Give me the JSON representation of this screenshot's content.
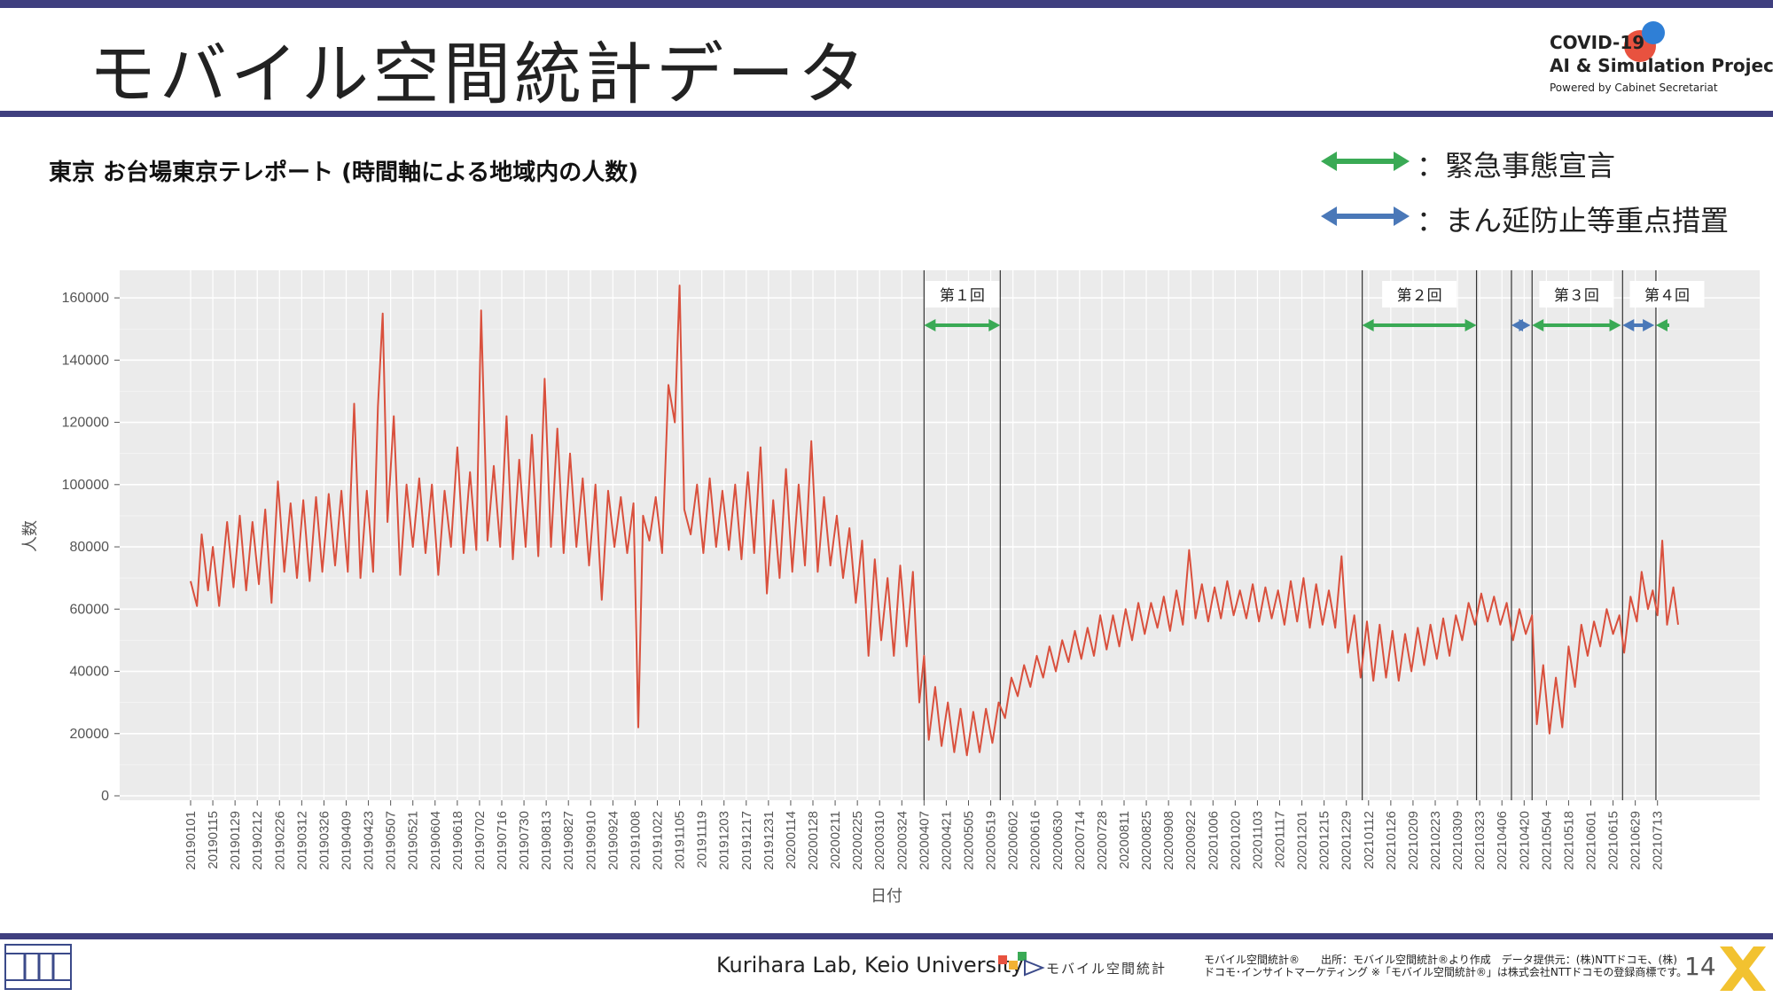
{
  "header": {
    "title": "モバイル空間統計データ",
    "brand_line1": "COVID-19",
    "brand_line2": "AI & Simulation Project",
    "brand_line3": "Powered by Cabinet Secretariat"
  },
  "subtitle": "東京 お台場東京テレポート (時間軸による地域内の人数)",
  "legend": [
    {
      "label": "：緊急事態宣言",
      "color": "#3aaa55"
    },
    {
      "label": "：まん延防止等重点措置",
      "color": "#4a78b8"
    }
  ],
  "footer": {
    "lab": "Kurihara Lab, Keio University",
    "logo_text": "モバイル空間統計",
    "source_line1": "モバイル空間統計®　　出所：モバイル空間統計®より作成　データ提供元：(株)NTTドコモ、(株)",
    "source_line2": "ドコモ･インサイトマーケティング ※「モバイル空間統計®」は株式会社NTTドコモの登録商標です。",
    "page_number": "14"
  },
  "colors": {
    "accent_bar": "#3f3f7f",
    "series_line": "#d9503d",
    "plot_bg": "#ebebeb"
  },
  "chart_data": {
    "type": "line",
    "title": "",
    "xlabel": "日付",
    "ylabel": "人数",
    "ylim": [
      0,
      170000
    ],
    "yticks": [
      0,
      20000,
      40000,
      60000,
      80000,
      100000,
      120000,
      140000,
      160000
    ],
    "grid": true,
    "x_start": "2019-01-01",
    "x_end": "2021-07-26",
    "x_ticks": [
      "20190101",
      "20190115",
      "20190129",
      "20190212",
      "20190226",
      "20190312",
      "20190326",
      "20190409",
      "20190423",
      "20190507",
      "20190521",
      "20190604",
      "20190618",
      "20190702",
      "20190716",
      "20190730",
      "20190813",
      "20190827",
      "20190910",
      "20190924",
      "20191008",
      "20191022",
      "20191105",
      "20191119",
      "20191203",
      "20191217",
      "20191231",
      "20200114",
      "20200128",
      "20200211",
      "20200225",
      "20200310",
      "20200324",
      "20200407",
      "20200421",
      "20200505",
      "20200519",
      "20200602",
      "20200616",
      "20200630",
      "20200714",
      "20200728",
      "20200811",
      "20200825",
      "20200908",
      "20200922",
      "20201006",
      "20201020",
      "20201103",
      "20201117",
      "20201201",
      "20201215",
      "20201229",
      "20210112",
      "20210126",
      "20210209",
      "20210223",
      "20210309",
      "20210323",
      "20210406",
      "20210420",
      "20210504",
      "20210518",
      "20210601",
      "20210615",
      "20210629",
      "20210713"
    ],
    "period_markers": [
      {
        "label": "第１回",
        "start": "2020-04-07",
        "end": "2020-05-25",
        "kind": "emergency"
      },
      {
        "label": "第２回",
        "start": "2021-01-08",
        "end": "2021-03-21",
        "kind": "emergency"
      },
      {
        "label": "",
        "start": "2021-04-12",
        "end": "2021-04-24",
        "kind": "priority"
      },
      {
        "label": "第３回",
        "start": "2021-04-25",
        "end": "2021-06-20",
        "kind": "emergency"
      },
      {
        "label": "",
        "start": "2021-06-21",
        "end": "2021-07-11",
        "kind": "priority"
      },
      {
        "label": "第４回",
        "start": "2021-07-12",
        "end": "2021-07-26",
        "kind": "emergency"
      }
    ],
    "series": [
      {
        "values_note": "",
        "points": [
          [
            "2019-01-01",
            69000
          ],
          [
            "2019-01-05",
            61000
          ],
          [
            "2019-01-08",
            84000
          ],
          [
            "2019-01-12",
            66000
          ],
          [
            "2019-01-15",
            80000
          ],
          [
            "2019-01-19",
            61000
          ],
          [
            "2019-01-24",
            88000
          ],
          [
            "2019-01-28",
            67000
          ],
          [
            "2019-02-01",
            90000
          ],
          [
            "2019-02-05",
            66000
          ],
          [
            "2019-02-09",
            88000
          ],
          [
            "2019-02-13",
            68000
          ],
          [
            "2019-02-17",
            92000
          ],
          [
            "2019-02-21",
            62000
          ],
          [
            "2019-02-25",
            101000
          ],
          [
            "2019-03-01",
            72000
          ],
          [
            "2019-03-05",
            94000
          ],
          [
            "2019-03-09",
            70000
          ],
          [
            "2019-03-13",
            95000
          ],
          [
            "2019-03-17",
            69000
          ],
          [
            "2019-03-21",
            96000
          ],
          [
            "2019-03-25",
            72000
          ],
          [
            "2019-03-29",
            97000
          ],
          [
            "2019-04-02",
            74000
          ],
          [
            "2019-04-06",
            98000
          ],
          [
            "2019-04-10",
            72000
          ],
          [
            "2019-04-14",
            126000
          ],
          [
            "2019-04-18",
            70000
          ],
          [
            "2019-04-22",
            98000
          ],
          [
            "2019-04-26",
            72000
          ],
          [
            "2019-04-29",
            125000
          ],
          [
            "2019-05-02",
            155000
          ],
          [
            "2019-05-05",
            88000
          ],
          [
            "2019-05-09",
            122000
          ],
          [
            "2019-05-13",
            71000
          ],
          [
            "2019-05-17",
            100000
          ],
          [
            "2019-05-21",
            80000
          ],
          [
            "2019-05-25",
            102000
          ],
          [
            "2019-05-29",
            78000
          ],
          [
            "2019-06-02",
            100000
          ],
          [
            "2019-06-06",
            71000
          ],
          [
            "2019-06-10",
            98000
          ],
          [
            "2019-06-14",
            80000
          ],
          [
            "2019-06-18",
            112000
          ],
          [
            "2019-06-22",
            78000
          ],
          [
            "2019-06-26",
            104000
          ],
          [
            "2019-06-30",
            79000
          ],
          [
            "2019-07-03",
            156000
          ],
          [
            "2019-07-07",
            82000
          ],
          [
            "2019-07-11",
            106000
          ],
          [
            "2019-07-15",
            80000
          ],
          [
            "2019-07-19",
            122000
          ],
          [
            "2019-07-23",
            76000
          ],
          [
            "2019-07-27",
            108000
          ],
          [
            "2019-07-31",
            80000
          ],
          [
            "2019-08-04",
            116000
          ],
          [
            "2019-08-08",
            77000
          ],
          [
            "2019-08-12",
            134000
          ],
          [
            "2019-08-16",
            80000
          ],
          [
            "2019-08-20",
            118000
          ],
          [
            "2019-08-24",
            78000
          ],
          [
            "2019-08-28",
            110000
          ],
          [
            "2019-09-01",
            80000
          ],
          [
            "2019-09-05",
            102000
          ],
          [
            "2019-09-09",
            74000
          ],
          [
            "2019-09-13",
            100000
          ],
          [
            "2019-09-17",
            63000
          ],
          [
            "2019-09-21",
            98000
          ],
          [
            "2019-09-25",
            80000
          ],
          [
            "2019-09-29",
            96000
          ],
          [
            "2019-10-03",
            78000
          ],
          [
            "2019-10-07",
            94000
          ],
          [
            "2019-10-10",
            22000
          ],
          [
            "2019-10-13",
            90000
          ],
          [
            "2019-10-17",
            82000
          ],
          [
            "2019-10-21",
            96000
          ],
          [
            "2019-10-25",
            78000
          ],
          [
            "2019-10-29",
            132000
          ],
          [
            "2019-11-02",
            120000
          ],
          [
            "2019-11-05",
            164000
          ],
          [
            "2019-11-08",
            92000
          ],
          [
            "2019-11-12",
            84000
          ],
          [
            "2019-11-16",
            100000
          ],
          [
            "2019-11-20",
            78000
          ],
          [
            "2019-11-24",
            102000
          ],
          [
            "2019-11-28",
            80000
          ],
          [
            "2019-12-02",
            98000
          ],
          [
            "2019-12-06",
            79000
          ],
          [
            "2019-12-10",
            100000
          ],
          [
            "2019-12-14",
            76000
          ],
          [
            "2019-12-18",
            104000
          ],
          [
            "2019-12-22",
            78000
          ],
          [
            "2019-12-26",
            112000
          ],
          [
            "2019-12-30",
            65000
          ],
          [
            "2020-01-03",
            95000
          ],
          [
            "2020-01-07",
            70000
          ],
          [
            "2020-01-11",
            105000
          ],
          [
            "2020-01-15",
            72000
          ],
          [
            "2020-01-19",
            100000
          ],
          [
            "2020-01-23",
            74000
          ],
          [
            "2020-01-27",
            114000
          ],
          [
            "2020-01-31",
            72000
          ],
          [
            "2020-02-04",
            96000
          ],
          [
            "2020-02-08",
            74000
          ],
          [
            "2020-02-12",
            90000
          ],
          [
            "2020-02-16",
            70000
          ],
          [
            "2020-02-20",
            86000
          ],
          [
            "2020-02-24",
            62000
          ],
          [
            "2020-02-28",
            82000
          ],
          [
            "2020-03-03",
            45000
          ],
          [
            "2020-03-07",
            76000
          ],
          [
            "2020-03-11",
            50000
          ],
          [
            "2020-03-15",
            70000
          ],
          [
            "2020-03-19",
            45000
          ],
          [
            "2020-03-23",
            74000
          ],
          [
            "2020-03-27",
            48000
          ],
          [
            "2020-03-31",
            72000
          ],
          [
            "2020-04-04",
            30000
          ],
          [
            "2020-04-07",
            45000
          ],
          [
            "2020-04-10",
            18000
          ],
          [
            "2020-04-14",
            35000
          ],
          [
            "2020-04-18",
            16000
          ],
          [
            "2020-04-22",
            30000
          ],
          [
            "2020-04-26",
            14000
          ],
          [
            "2020-04-30",
            28000
          ],
          [
            "2020-05-04",
            13000
          ],
          [
            "2020-05-08",
            27000
          ],
          [
            "2020-05-12",
            14000
          ],
          [
            "2020-05-16",
            28000
          ],
          [
            "2020-05-20",
            17000
          ],
          [
            "2020-05-24",
            30000
          ],
          [
            "2020-05-28",
            25000
          ],
          [
            "2020-06-01",
            38000
          ],
          [
            "2020-06-05",
            32000
          ],
          [
            "2020-06-09",
            42000
          ],
          [
            "2020-06-13",
            35000
          ],
          [
            "2020-06-17",
            45000
          ],
          [
            "2020-06-21",
            38000
          ],
          [
            "2020-06-25",
            48000
          ],
          [
            "2020-06-29",
            40000
          ],
          [
            "2020-07-03",
            50000
          ],
          [
            "2020-07-07",
            43000
          ],
          [
            "2020-07-11",
            53000
          ],
          [
            "2020-07-15",
            44000
          ],
          [
            "2020-07-19",
            54000
          ],
          [
            "2020-07-23",
            45000
          ],
          [
            "2020-07-27",
            58000
          ],
          [
            "2020-07-31",
            47000
          ],
          [
            "2020-08-04",
            58000
          ],
          [
            "2020-08-08",
            48000
          ],
          [
            "2020-08-12",
            60000
          ],
          [
            "2020-08-16",
            50000
          ],
          [
            "2020-08-20",
            62000
          ],
          [
            "2020-08-24",
            52000
          ],
          [
            "2020-08-28",
            62000
          ],
          [
            "2020-09-01",
            54000
          ],
          [
            "2020-09-05",
            64000
          ],
          [
            "2020-09-09",
            53000
          ],
          [
            "2020-09-13",
            66000
          ],
          [
            "2020-09-17",
            55000
          ],
          [
            "2020-09-21",
            79000
          ],
          [
            "2020-09-25",
            57000
          ],
          [
            "2020-09-29",
            68000
          ],
          [
            "2020-10-03",
            56000
          ],
          [
            "2020-10-07",
            67000
          ],
          [
            "2020-10-11",
            57000
          ],
          [
            "2020-10-15",
            69000
          ],
          [
            "2020-10-19",
            58000
          ],
          [
            "2020-10-23",
            66000
          ],
          [
            "2020-10-27",
            57000
          ],
          [
            "2020-10-31",
            68000
          ],
          [
            "2020-11-04",
            56000
          ],
          [
            "2020-11-08",
            67000
          ],
          [
            "2020-11-12",
            57000
          ],
          [
            "2020-11-16",
            66000
          ],
          [
            "2020-11-20",
            55000
          ],
          [
            "2020-11-24",
            69000
          ],
          [
            "2020-11-28",
            56000
          ],
          [
            "2020-12-02",
            70000
          ],
          [
            "2020-12-06",
            54000
          ],
          [
            "2020-12-10",
            68000
          ],
          [
            "2020-12-14",
            55000
          ],
          [
            "2020-12-18",
            66000
          ],
          [
            "2020-12-22",
            54000
          ],
          [
            "2020-12-26",
            77000
          ],
          [
            "2020-12-30",
            46000
          ],
          [
            "2021-01-03",
            58000
          ],
          [
            "2021-01-07",
            38000
          ],
          [
            "2021-01-11",
            56000
          ],
          [
            "2021-01-15",
            37000
          ],
          [
            "2021-01-19",
            55000
          ],
          [
            "2021-01-23",
            38000
          ],
          [
            "2021-01-27",
            53000
          ],
          [
            "2021-01-31",
            37000
          ],
          [
            "2021-02-04",
            52000
          ],
          [
            "2021-02-08",
            40000
          ],
          [
            "2021-02-12",
            54000
          ],
          [
            "2021-02-16",
            42000
          ],
          [
            "2021-02-20",
            55000
          ],
          [
            "2021-02-24",
            44000
          ],
          [
            "2021-02-28",
            57000
          ],
          [
            "2021-03-04",
            45000
          ],
          [
            "2021-03-08",
            58000
          ],
          [
            "2021-03-12",
            50000
          ],
          [
            "2021-03-16",
            62000
          ],
          [
            "2021-03-20",
            55000
          ],
          [
            "2021-03-24",
            65000
          ],
          [
            "2021-03-28",
            56000
          ],
          [
            "2021-04-01",
            64000
          ],
          [
            "2021-04-05",
            55000
          ],
          [
            "2021-04-09",
            62000
          ],
          [
            "2021-04-13",
            50000
          ],
          [
            "2021-04-17",
            60000
          ],
          [
            "2021-04-21",
            52000
          ],
          [
            "2021-04-25",
            58000
          ],
          [
            "2021-04-28",
            23000
          ],
          [
            "2021-05-02",
            42000
          ],
          [
            "2021-05-06",
            20000
          ],
          [
            "2021-05-10",
            38000
          ],
          [
            "2021-05-14",
            22000
          ],
          [
            "2021-05-18",
            48000
          ],
          [
            "2021-05-22",
            35000
          ],
          [
            "2021-05-26",
            55000
          ],
          [
            "2021-05-30",
            45000
          ],
          [
            "2021-06-03",
            56000
          ],
          [
            "2021-06-07",
            48000
          ],
          [
            "2021-06-11",
            60000
          ],
          [
            "2021-06-15",
            52000
          ],
          [
            "2021-06-19",
            58000
          ],
          [
            "2021-06-22",
            46000
          ],
          [
            "2021-06-26",
            64000
          ],
          [
            "2021-06-30",
            56000
          ],
          [
            "2021-07-03",
            72000
          ],
          [
            "2021-07-07",
            60000
          ],
          [
            "2021-07-10",
            66000
          ],
          [
            "2021-07-13",
            58000
          ],
          [
            "2021-07-16",
            82000
          ],
          [
            "2021-07-19",
            55000
          ],
          [
            "2021-07-23",
            67000
          ],
          [
            "2021-07-26",
            55000
          ]
        ]
      }
    ]
  }
}
